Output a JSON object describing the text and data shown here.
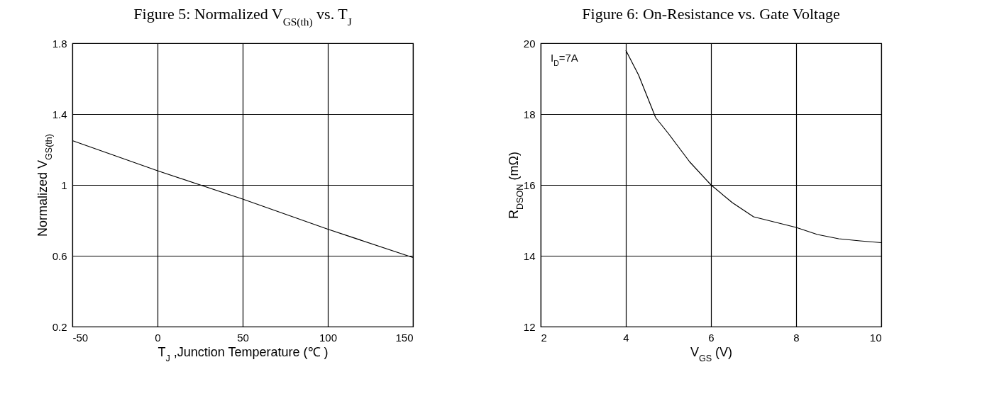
{
  "chart_data": [
    {
      "type": "line",
      "title": "Figure 5: Normalized V$_{GS(th)}$ vs. T$_{J}$",
      "xlabel": "T$_{J}$ ,Junction Temperature (℃ )",
      "ylabel": "Normalized V$_{GS(th)}$",
      "x": [
        -50,
        0,
        50,
        100,
        150
      ],
      "series": [
        {
          "color": "#000000",
          "values": [
            1.25,
            1.08,
            0.92,
            0.75,
            0.59
          ]
        }
      ],
      "xlim": [
        -50,
        150
      ],
      "xticks": [
        -50,
        0,
        50,
        100,
        150
      ],
      "ylim": [
        0.2,
        1.8
      ],
      "yticks": [
        0.2,
        0.6,
        1,
        1.4,
        1.8
      ],
      "grid": true
    },
    {
      "type": "line",
      "title": "Figure 6: On-Resistance vs. Gate Voltage",
      "xlabel": "V$_{GS}$ (V)",
      "ylabel": "R$_{DSON}$ (mΩ)",
      "annotations": [
        "I$_{D}$=7A"
      ],
      "x": [
        4,
        4.3,
        4.7,
        5,
        5.5,
        6,
        6.5,
        7,
        7.5,
        8,
        8.5,
        9,
        9.5,
        10
      ],
      "series": [
        {
          "color": "#000000",
          "values": [
            19.8,
            19.1,
            17.9,
            17.45,
            16.65,
            16,
            15.5,
            15.1,
            14.95,
            14.8,
            14.6,
            14.48,
            14.42,
            14.37
          ]
        }
      ],
      "xlim": [
        2,
        10
      ],
      "xticks": [
        2,
        4,
        6,
        8,
        10
      ],
      "ylim": [
        12,
        20
      ],
      "yticks": [
        12,
        14,
        16,
        18,
        20
      ],
      "grid": true
    }
  ]
}
